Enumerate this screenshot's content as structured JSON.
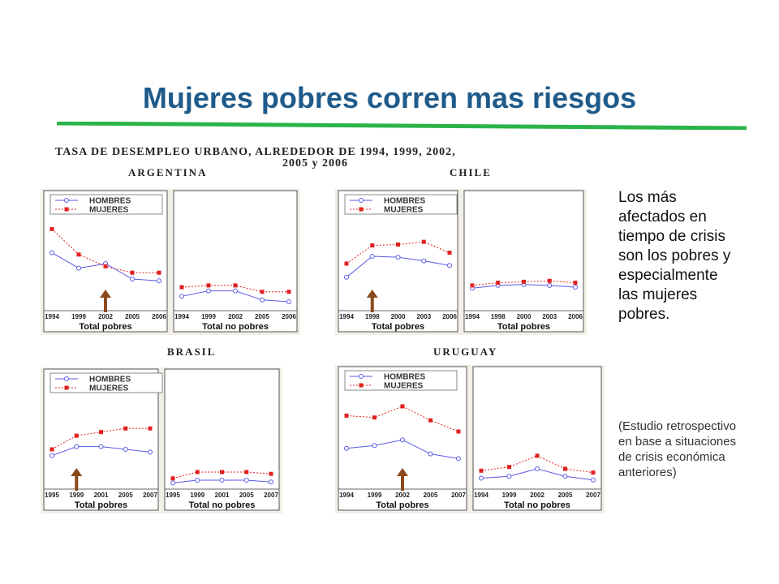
{
  "slide": {
    "title": "Mujeres pobres corren mas riesgos",
    "chart_header_line1": "TASA DE DESEMPLEO URBANO, ALREDEDOR DE 1994, 1999, 2002,",
    "chart_header_line2": "2005 y  2006",
    "side_text": "Los más afectados en tiempo de crisis son los pobres y especialmente las mujeres pobres.",
    "note_text": "(Estudio retrospectivo en base a situaciones de crisis económica anteriores)",
    "colors": {
      "title": "#1f5b8a",
      "rule": "#2bb34a",
      "hombres": "#5a5ae6",
      "mujeres": "#e02020",
      "arrow": "#8b4a1c",
      "panel_bg": "#f1efe6"
    }
  },
  "chart_data": [
    {
      "country": "ARGENTINA",
      "type": "line",
      "legend": [
        "HOMBRES",
        "MUJERES"
      ],
      "panels": [
        {
          "xlabel": "Total pobres",
          "x": [
            "1994",
            "1999",
            "2002",
            "2005",
            "2006"
          ],
          "series": [
            {
              "name": "HOMBRES",
              "values": [
                0.62,
                0.45,
                0.5,
                0.33,
                0.31
              ]
            },
            {
              "name": "MUJERES",
              "values": [
                0.88,
                0.6,
                0.47,
                0.4,
                0.4
              ]
            }
          ],
          "arrow_at": "2002"
        },
        {
          "xlabel": "Total no pobres",
          "x": [
            "1994",
            "1999",
            "2002",
            "2005",
            "2006"
          ],
          "series": [
            {
              "name": "HOMBRES",
              "values": [
                0.14,
                0.2,
                0.2,
                0.1,
                0.08
              ]
            },
            {
              "name": "MUJERES",
              "values": [
                0.24,
                0.26,
                0.26,
                0.19,
                0.19
              ]
            }
          ]
        }
      ]
    },
    {
      "country": "CHILE",
      "type": "line",
      "legend": [
        "HOMBRES",
        "MUJERES"
      ],
      "panels": [
        {
          "xlabel": "Total pobres",
          "x": [
            "1994",
            "1998",
            "2000",
            "2003",
            "2006"
          ],
          "series": [
            {
              "name": "HOMBRES",
              "values": [
                0.35,
                0.58,
                0.57,
                0.53,
                0.48
              ]
            },
            {
              "name": "MUJERES",
              "values": [
                0.5,
                0.7,
                0.71,
                0.74,
                0.62
              ]
            }
          ],
          "arrow_at": "1998"
        },
        {
          "xlabel": "Total pobres",
          "x": [
            "1994",
            "1998",
            "2000",
            "2003",
            "2006"
          ],
          "series": [
            {
              "name": "HOMBRES",
              "values": [
                0.23,
                0.26,
                0.27,
                0.26,
                0.24
              ]
            },
            {
              "name": "MUJERES",
              "values": [
                0.26,
                0.29,
                0.3,
                0.31,
                0.29
              ]
            }
          ]
        }
      ]
    },
    {
      "country": "BRASIL",
      "type": "line",
      "legend": [
        "HOMBRES",
        "MUJERES"
      ],
      "panels": [
        {
          "xlabel": "Total pobres",
          "x": [
            "1995",
            "1999",
            "2001",
            "2005",
            "2007"
          ],
          "series": [
            {
              "name": "HOMBRES",
              "values": [
                0.35,
                0.45,
                0.45,
                0.42,
                0.39
              ]
            },
            {
              "name": "MUJERES",
              "values": [
                0.42,
                0.57,
                0.61,
                0.65,
                0.65
              ]
            }
          ],
          "arrow_at": "1999"
        },
        {
          "xlabel": "Total no pobres",
          "x": [
            "1995",
            "1999",
            "2001",
            "2005",
            "2007"
          ],
          "series": [
            {
              "name": "HOMBRES",
              "values": [
                0.05,
                0.08,
                0.08,
                0.08,
                0.06
              ]
            },
            {
              "name": "MUJERES",
              "values": [
                0.1,
                0.17,
                0.17,
                0.17,
                0.15
              ]
            }
          ]
        }
      ]
    },
    {
      "country": "URUGUAY",
      "type": "line",
      "legend": [
        "HOMBRES",
        "MUJERES"
      ],
      "panels": [
        {
          "xlabel": "Total pobres",
          "x": [
            "1994",
            "1999",
            "2002",
            "2005",
            "2007"
          ],
          "series": [
            {
              "name": "HOMBRES",
              "values": [
                0.42,
                0.45,
                0.51,
                0.36,
                0.31
              ]
            },
            {
              "name": "MUJERES",
              "values": [
                0.77,
                0.75,
                0.87,
                0.72,
                0.6
              ]
            }
          ],
          "arrow_at": "2002"
        },
        {
          "xlabel": "Total no pobres",
          "x": [
            "1994",
            "1999",
            "2002",
            "2005",
            "2007"
          ],
          "series": [
            {
              "name": "HOMBRES",
              "values": [
                0.1,
                0.12,
                0.2,
                0.12,
                0.08
              ]
            },
            {
              "name": "MUJERES",
              "values": [
                0.18,
                0.22,
                0.34,
                0.2,
                0.16
              ]
            }
          ]
        }
      ]
    }
  ]
}
